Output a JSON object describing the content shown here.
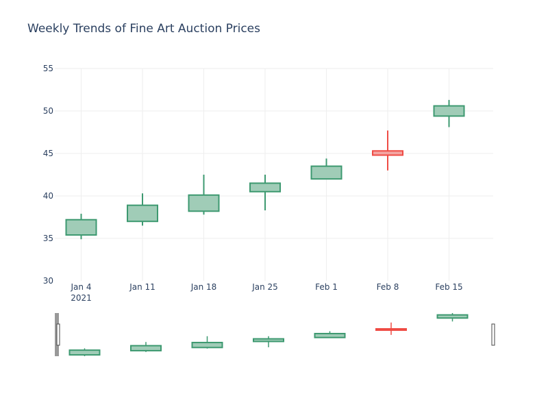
{
  "chart_data": {
    "type": "candlestick",
    "title": "Weekly Trends of Fine Art Auction Prices",
    "xlabel": "",
    "ylabel": "",
    "ylim": [
      30,
      55
    ],
    "y_ticks": [
      30,
      35,
      40,
      45,
      50,
      55
    ],
    "x_tick_labels": [
      "Jan 4",
      "Jan 11",
      "Jan 18",
      "Jan 25",
      "Feb 1",
      "Feb 8",
      "Feb 15"
    ],
    "x_year_label": "2021",
    "grid": true,
    "rangeslider": true,
    "increasing_color": "#3D9970",
    "increasing_fill": "#a0ccb7",
    "decreasing_color": "#EF4B44",
    "decreasing_fill": "#f3a5a2",
    "candles": [
      {
        "date": "2021-01-04",
        "open": 35.4,
        "high": 37.9,
        "low": 34.9,
        "close": 37.2
      },
      {
        "date": "2021-01-11",
        "open": 37.0,
        "high": 40.3,
        "low": 36.5,
        "close": 38.9
      },
      {
        "date": "2021-01-18",
        "open": 38.2,
        "high": 42.5,
        "low": 37.8,
        "close": 40.1
      },
      {
        "date": "2021-01-25",
        "open": 40.5,
        "high": 42.5,
        "low": 38.3,
        "close": 41.5
      },
      {
        "date": "2021-02-01",
        "open": 42.0,
        "high": 44.4,
        "low": 42.0,
        "close": 43.5
      },
      {
        "date": "2021-02-08",
        "open": 45.3,
        "high": 47.7,
        "low": 43.0,
        "close": 44.8
      },
      {
        "date": "2021-02-15",
        "open": 49.4,
        "high": 51.3,
        "low": 48.1,
        "close": 50.6
      }
    ]
  }
}
